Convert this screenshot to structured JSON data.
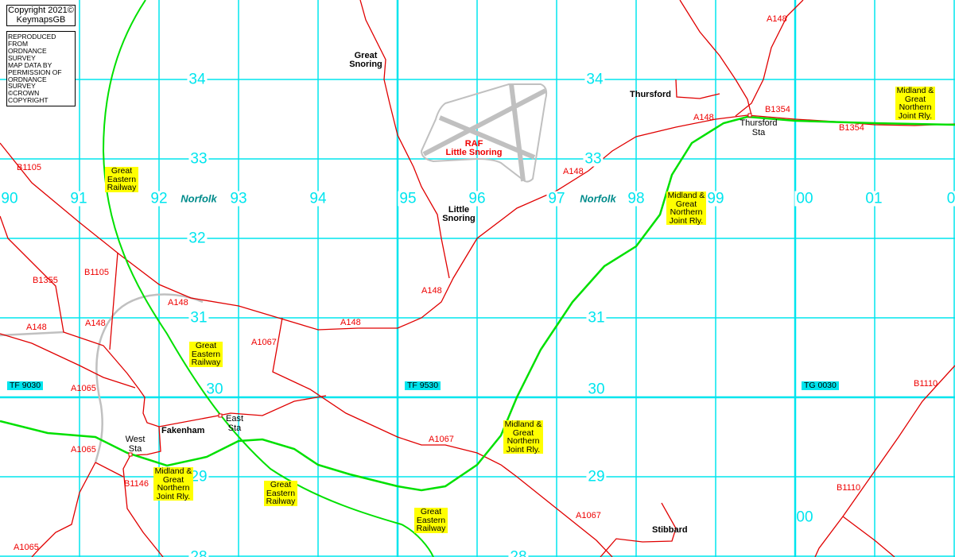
{
  "copyright": {
    "line1": "Copyright 2021©",
    "line2": "KeymapsGB"
  },
  "os_notice": [
    "REPRODUCED FROM",
    "ORDNANCE SURVEY",
    "MAP DATA BY",
    "PERMISSION OF",
    "ORDNANCE SURVEY",
    "©CROWN COPYRIGHT"
  ],
  "colors": {
    "grid": "#00e5ee",
    "road": "#e00000",
    "railway": "#00e000",
    "disused": "#c0c0c0",
    "label_bg": "#ffff00"
  },
  "eastings": [
    "90",
    "91",
    "92",
    "93",
    "94",
    "95",
    "96",
    "97",
    "98",
    "99",
    "00",
    "01",
    "0"
  ],
  "northings": {
    "n34": "34",
    "n33": "33",
    "n32": "32",
    "n31": "31",
    "n30": "30",
    "n29": "29",
    "n28": "28",
    "n00": "00"
  },
  "county": "Norfolk",
  "grid_refs": [
    "TF 9030",
    "TF 9530",
    "TG 0030"
  ],
  "places": {
    "great_snoring": "Great Snoring",
    "little_snoring": "Little Snoring",
    "thursford": "Thursford",
    "fakenham": "Fakenham",
    "stibbard": "Stibbard"
  },
  "stations": {
    "thursford": "Thursford Sta",
    "east": "East Sta",
    "west": "West Sta"
  },
  "airfield": {
    "line1": "RAF",
    "line2": "Little Snoring"
  },
  "railways": {
    "ger": "Great Eastern Railway",
    "mgn": "Midland & Great Northern Joint Rly."
  },
  "roads": {
    "a148": "A148",
    "b1354": "B1354",
    "b1105": "B1105",
    "b1355": "B1355",
    "a1065": "A1065",
    "a1067": "A1067",
    "b1146": "B1146",
    "b1110": "B1110"
  }
}
